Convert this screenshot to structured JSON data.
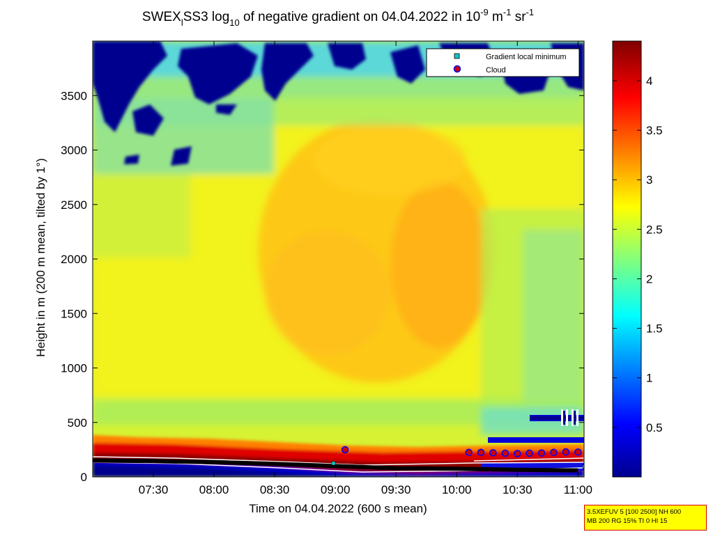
{
  "chart_data": {
    "type": "heatmap",
    "title": {
      "prefix": "SWEX",
      "sub_l": "l",
      "part2": "SS3 log",
      "sub_10": "10",
      "part3": " of negative gradient on 04.04.2022 in 10",
      "sup_a": "-9",
      "part4": " m",
      "sup_b": "-1",
      "part5": " sr",
      "sup_c": "-1"
    },
    "xlabel": "Time on 04.04.2022 (600 s mean)",
    "ylabel": "Height in m (200 m mean, tilted by 1°)",
    "x_hours_range": [
      7.0,
      11.05
    ],
    "x_ticks": [
      {
        "h": 7.5,
        "label": "07:30"
      },
      {
        "h": 8.0,
        "label": "08:00"
      },
      {
        "h": 8.5,
        "label": "08:30"
      },
      {
        "h": 9.0,
        "label": "09:00"
      },
      {
        "h": 9.5,
        "label": "09:30"
      },
      {
        "h": 10.0,
        "label": "10:00"
      },
      {
        "h": 10.5,
        "label": "10:30"
      },
      {
        "h": 11.0,
        "label": "11:00"
      }
    ],
    "ylim": [
      0,
      4000
    ],
    "y_ticks": [
      0,
      500,
      1000,
      1500,
      2000,
      2500,
      3000,
      3500
    ],
    "colorbar": {
      "range": [
        0,
        4.4
      ],
      "ticks": [
        0.5,
        1,
        1.5,
        2,
        2.5,
        3,
        3.5,
        4
      ],
      "colormap": "jet"
    },
    "legend": {
      "position": "top-right",
      "entries": [
        {
          "name": "Gradient local minimum",
          "marker": "square",
          "color": "#17c4c4"
        },
        {
          "name": "Cloud",
          "marker": "circle",
          "color": "#cc0000",
          "edge": "#0000ff"
        }
      ]
    },
    "cloud_points": [
      {
        "h": 9.08,
        "height": 250
      },
      {
        "h": 10.1,
        "height": 225
      },
      {
        "h": 10.2,
        "height": 225
      },
      {
        "h": 10.3,
        "height": 222
      },
      {
        "h": 10.4,
        "height": 218
      },
      {
        "h": 10.5,
        "height": 215
      },
      {
        "h": 10.6,
        "height": 218
      },
      {
        "h": 10.7,
        "height": 220
      },
      {
        "h": 10.8,
        "height": 225
      },
      {
        "h": 10.9,
        "height": 230
      },
      {
        "h": 11.0,
        "height": 228
      }
    ],
    "gradient_minimum_line": [
      {
        "h": 7.0,
        "height": 150
      },
      {
        "h": 7.5,
        "height": 145
      },
      {
        "h": 8.0,
        "height": 135
      },
      {
        "h": 8.5,
        "height": 120
      },
      {
        "h": 9.0,
        "height": 100
      },
      {
        "h": 9.5,
        "height": 80
      },
      {
        "h": 10.0,
        "height": 75
      },
      {
        "h": 10.5,
        "height": 65
      },
      {
        "h": 11.0,
        "height": 60
      }
    ]
  },
  "infobox": {
    "line1": "3.5XEFUV 5 [100 2500] NH 600",
    "line2": "MB 200 RG 15% TI 0 HI 15"
  }
}
